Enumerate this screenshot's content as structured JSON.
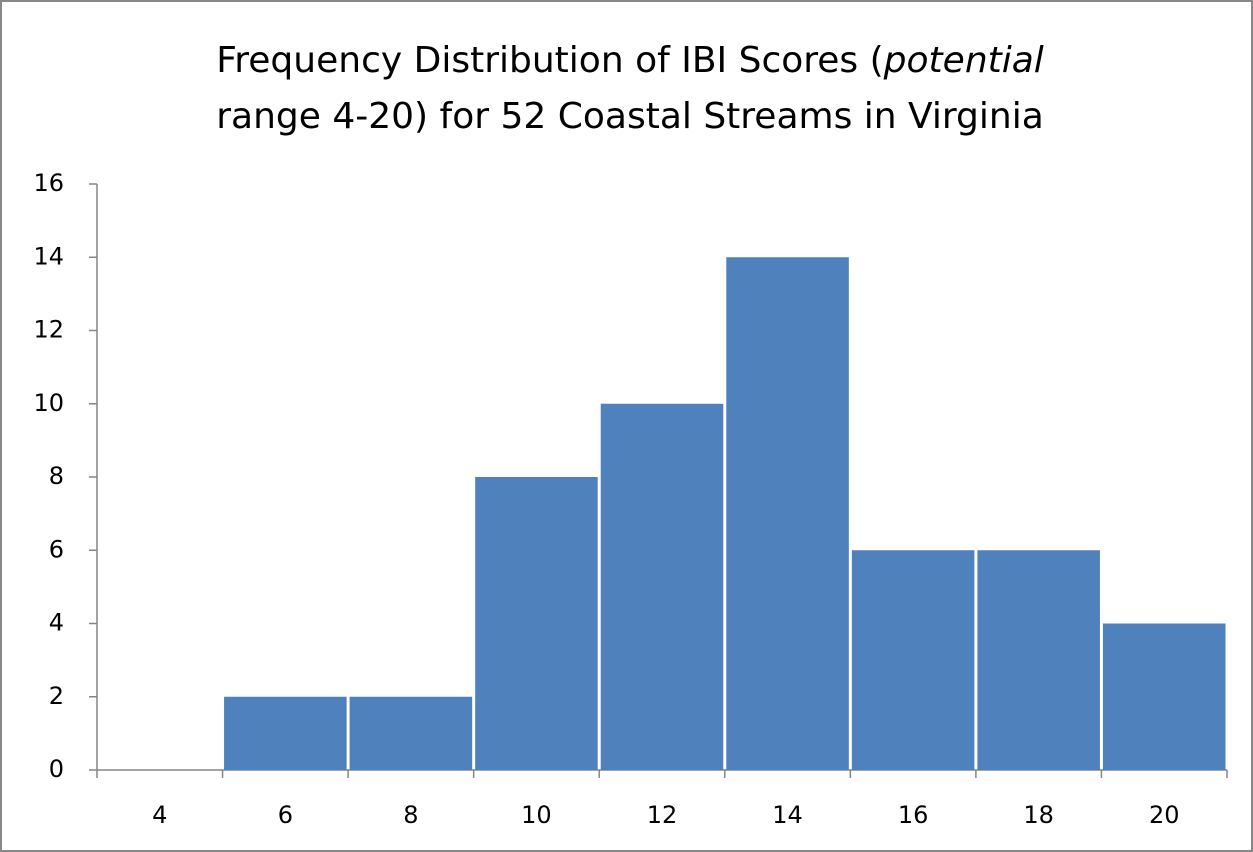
{
  "chart_data": {
    "type": "bar",
    "title": [
      "Frequency Distribution of IBI Scores (",
      "potential",
      "range 4-20) for 52 Coastal Streams in Virginia"
    ],
    "categories": [
      "4",
      "6",
      "8",
      "10",
      "12",
      "14",
      "16",
      "18",
      "20"
    ],
    "values": [
      0,
      2,
      2,
      8,
      10,
      14,
      6,
      6,
      4
    ],
    "color": "#4f81bd",
    "ylim": [
      0,
      16
    ],
    "yticks": [
      0,
      2,
      4,
      6,
      8,
      10,
      12,
      14,
      16
    ],
    "grid": false
  }
}
